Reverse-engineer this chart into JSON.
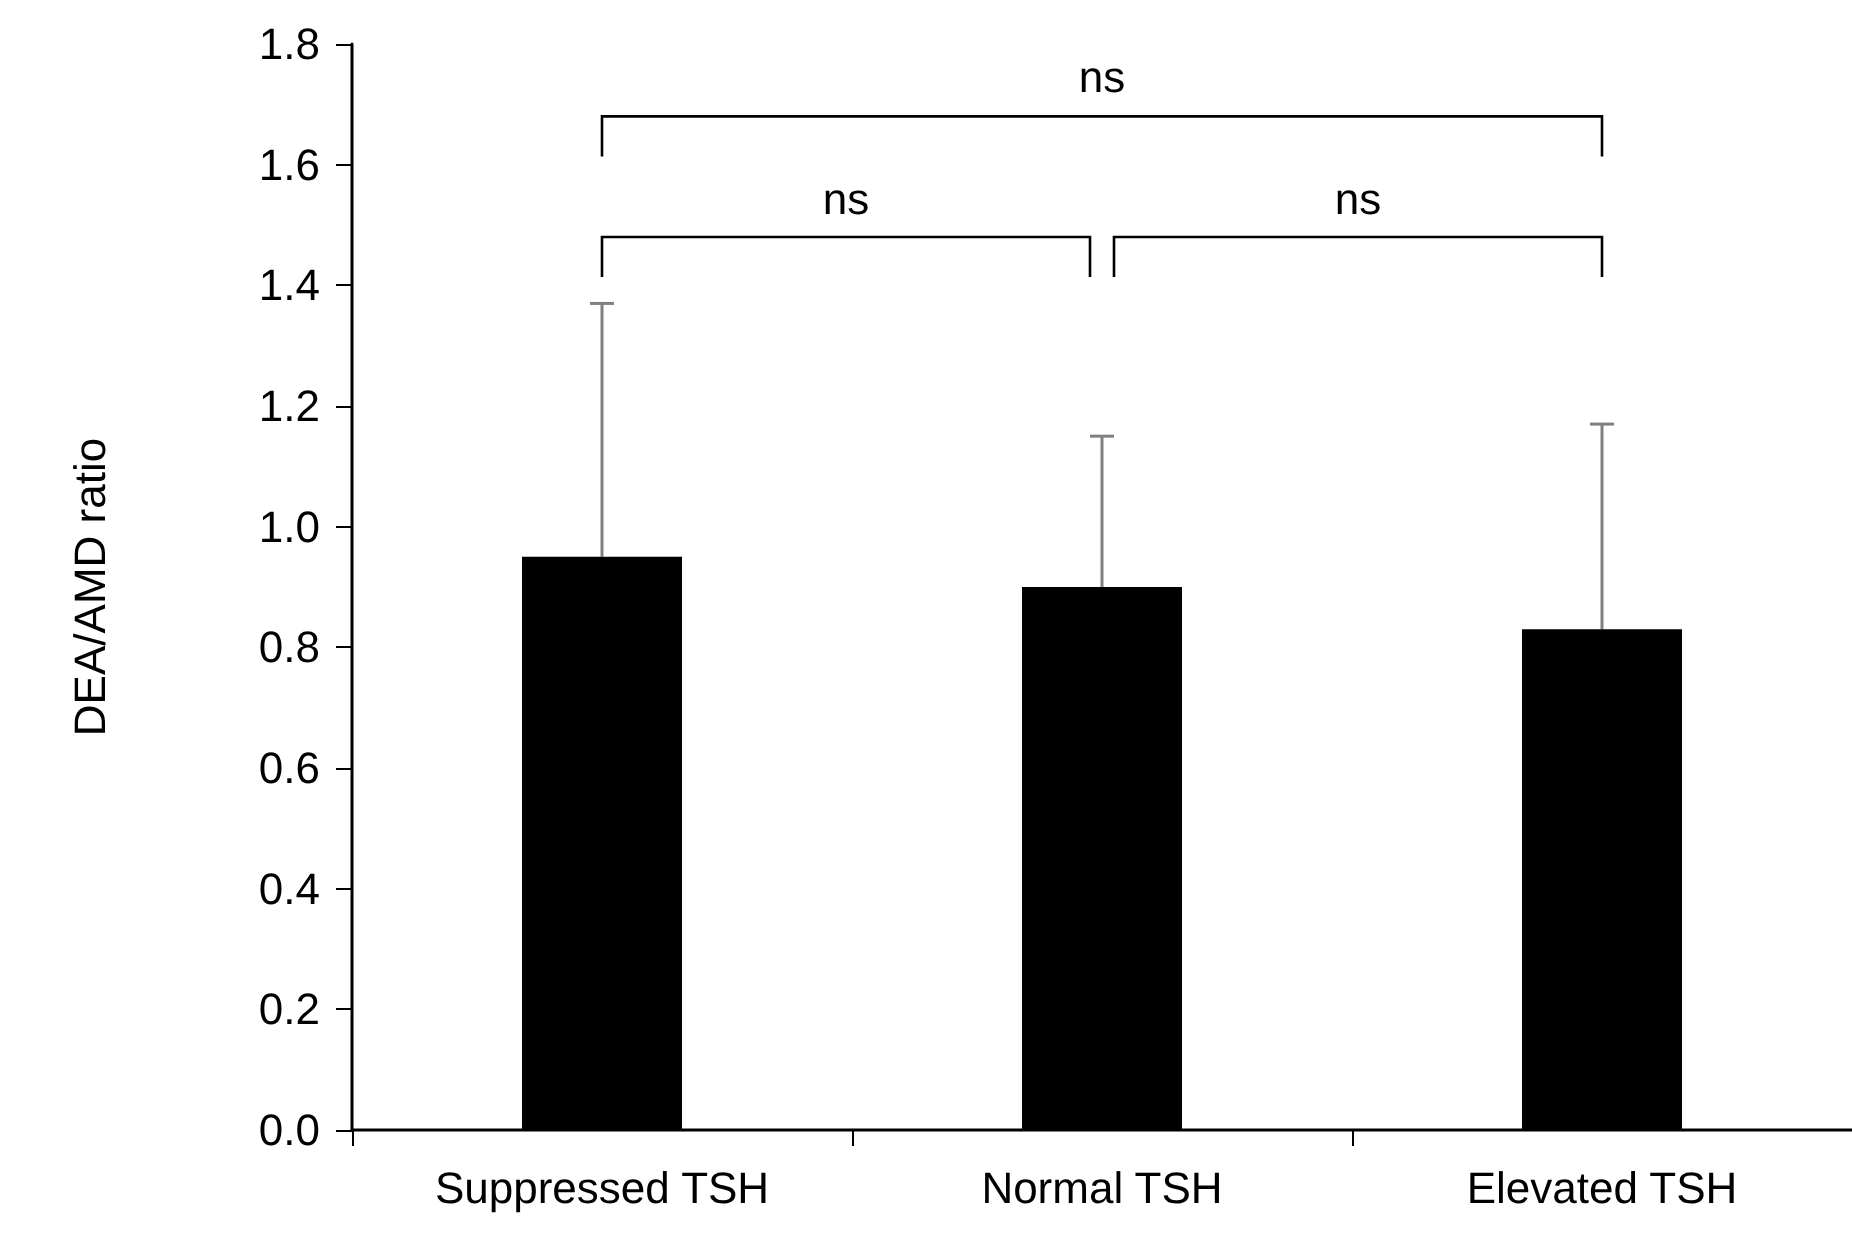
{
  "chart_data": {
    "type": "bar",
    "ylabel": "DEA/AMD ratio",
    "categories": [
      "Suppressed TSH",
      "Normal TSH",
      "Elevated TSH"
    ],
    "values": [
      0.95,
      0.9,
      0.83
    ],
    "errors": [
      [
        0.95,
        1.37
      ],
      [
        0.9,
        1.15
      ],
      [
        0.83,
        1.17
      ]
    ],
    "color": "#000000",
    "ylim": [
      0,
      1.8
    ],
    "yticks": [
      {
        "value": 0,
        "label": "0.0"
      },
      {
        "value": 0.2,
        "label": "0.2"
      },
      {
        "value": 0.4,
        "label": "0.4"
      },
      {
        "value": 0.6,
        "label": "0.6"
      },
      {
        "value": 0.8,
        "label": "0.8"
      },
      {
        "value": 1,
        "label": "1.0"
      },
      {
        "value": 1.2,
        "label": "1.2"
      },
      {
        "value": 1.4,
        "label": "1.4"
      },
      {
        "value": 1.6,
        "label": "1.6"
      },
      {
        "value": 1.8,
        "label": "1.8"
      }
    ],
    "grid": false,
    "annotations": [
      "ns",
      "ns",
      "ns"
    ]
  }
}
